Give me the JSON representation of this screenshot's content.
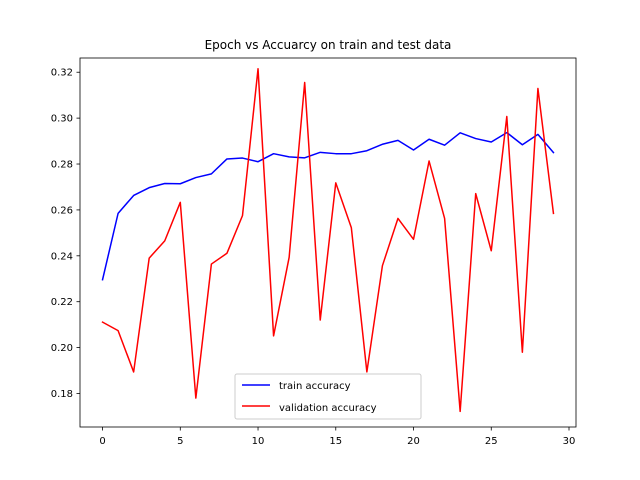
{
  "chart_data": {
    "type": "line",
    "title": "Epoch vs Accuarcy on train and test data",
    "xlabel": "",
    "ylabel": "",
    "xlim": [
      -1.45,
      30.45
    ],
    "ylim": [
      0.1654,
      0.3262
    ],
    "xticks": [
      0,
      5,
      10,
      15,
      20,
      25,
      30
    ],
    "yticks": [
      0.18,
      0.2,
      0.22,
      0.24,
      0.26,
      0.28,
      0.3,
      0.32
    ],
    "ytick_labels": [
      "0.18",
      "0.20",
      "0.22",
      "0.24",
      "0.26",
      "0.28",
      "0.30",
      "0.32"
    ],
    "grid": false,
    "legend_position": "lower center",
    "x": [
      0,
      1,
      2,
      3,
      4,
      5,
      6,
      7,
      8,
      9,
      10,
      11,
      12,
      13,
      14,
      15,
      16,
      17,
      18,
      19,
      20,
      21,
      22,
      23,
      24,
      25,
      26,
      27,
      28,
      29
    ],
    "series": [
      {
        "name": "train accuracy",
        "color": "#0000ff",
        "values": [
          0.2296,
          0.2585,
          0.2663,
          0.2697,
          0.2715,
          0.2714,
          0.2741,
          0.2757,
          0.2822,
          0.2826,
          0.281,
          0.2845,
          0.2831,
          0.2827,
          0.2851,
          0.2845,
          0.2845,
          0.2858,
          0.2886,
          0.2903,
          0.2861,
          0.2908,
          0.2882,
          0.2936,
          0.2911,
          0.2896,
          0.2937,
          0.2884,
          0.2929,
          0.285
        ]
      },
      {
        "name": "validation accuracy",
        "color": "#ff0000",
        "values": [
          0.2111,
          0.2074,
          0.1894,
          0.239,
          0.2465,
          0.2633,
          0.178,
          0.2364,
          0.2411,
          0.2575,
          0.3215,
          0.2051,
          0.2393,
          0.3155,
          0.212,
          0.2718,
          0.2523,
          0.1894,
          0.2357,
          0.2563,
          0.2472,
          0.2813,
          0.2563,
          0.1722,
          0.2671,
          0.2422,
          0.3007,
          0.198,
          0.3129,
          0.2585
        ]
      }
    ]
  }
}
